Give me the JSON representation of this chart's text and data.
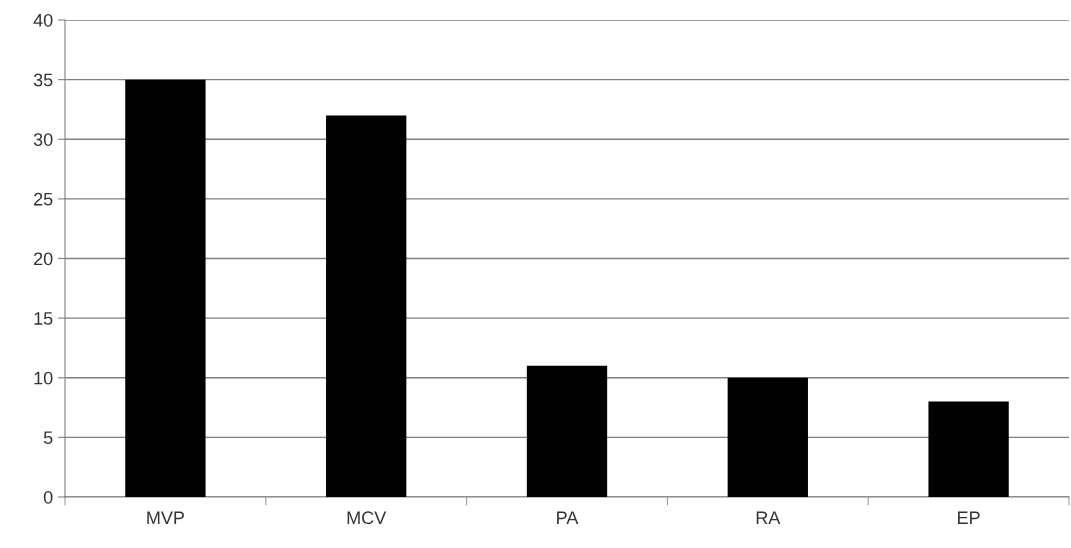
{
  "chart_data": {
    "type": "bar",
    "categories": [
      "MVP",
      "MCV",
      "PA",
      "RA",
      "EP"
    ],
    "values": [
      35,
      32,
      11,
      10,
      8
    ],
    "color": "#000000",
    "ylim": [
      0,
      40
    ],
    "yticks": [
      0,
      5,
      10,
      15,
      20,
      25,
      30,
      35,
      40
    ],
    "grid": "y"
  }
}
